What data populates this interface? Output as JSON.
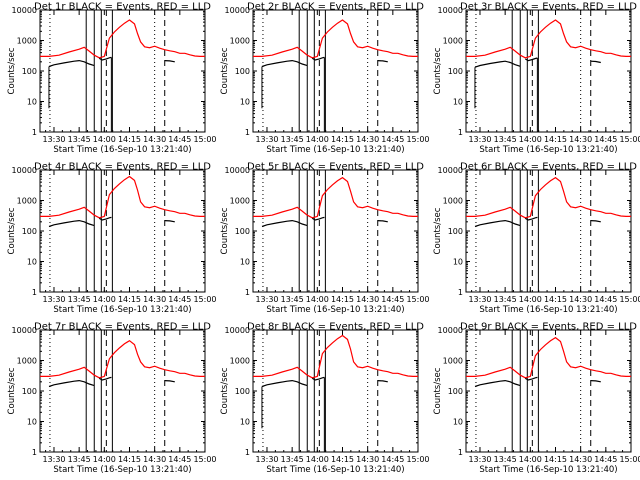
{
  "colors": {
    "events": "#000000",
    "lld": "#ff0000",
    "background": "#ffffff"
  },
  "chart_data": {
    "type": "line",
    "layout": "3x3 grid of panels",
    "ylabel": "Counts/sec",
    "xlabel": "Start Time (16-Sep-10 13:21:40)",
    "yscale": "log",
    "ylim": [
      1,
      10000
    ],
    "y_ticks": [
      1,
      10,
      100,
      1000,
      10000
    ],
    "xlim": [
      13.3611,
      15.0
    ],
    "x_ticks": [
      {
        "x": 13.5,
        "label": "13:30"
      },
      {
        "x": 13.75,
        "label": "13:45"
      },
      {
        "x": 14.0,
        "label": "14:00"
      },
      {
        "x": 14.25,
        "label": "14:15"
      },
      {
        "x": 14.5,
        "label": "14:30"
      },
      {
        "x": 14.75,
        "label": "14:45"
      },
      {
        "x": 15.0,
        "label": "15:00"
      }
    ],
    "series_names": [
      "Events",
      "LLD"
    ],
    "lld": {
      "x": [
        13.361,
        13.45,
        13.55,
        13.65,
        13.75,
        13.8,
        13.85,
        13.9,
        13.95,
        14.0,
        14.05,
        14.1,
        14.15,
        14.2,
        14.25,
        14.3,
        14.33,
        14.36,
        14.4,
        14.45,
        14.5,
        14.55,
        14.6,
        14.65,
        14.7,
        14.75,
        14.8,
        14.85,
        14.9,
        14.95,
        15.0
      ],
      "y": [
        300,
        300,
        330,
        420,
        520,
        600,
        450,
        330,
        270,
        300,
        1200,
        1900,
        2700,
        3700,
        4700,
        3500,
        1700,
        900,
        620,
        580,
        650,
        560,
        500,
        460,
        430,
        380,
        380,
        340,
        310,
        300,
        300
      ]
    },
    "events": {
      "segments": [
        {
          "x": [
            13.45,
            13.5,
            13.6,
            13.7,
            13.75,
            13.8,
            13.85,
            13.9
          ],
          "y": [
            140,
            160,
            185,
            210,
            220,
            200,
            170,
            150
          ]
        },
        {
          "x": [
            13.95,
            13.98,
            14.02,
            14.05,
            14.07
          ],
          "y": [
            260,
            230,
            250,
            270,
            280
          ]
        },
        {
          "x": [
            14.6,
            14.65,
            14.7
          ],
          "y": [
            220,
            215,
            200
          ]
        }
      ],
      "spikes": [
        {
          "x": 13.45,
          "from": 140,
          "to": 6
        },
        {
          "x": 14.07,
          "from": 280,
          "to": 1
        }
      ]
    },
    "markers": {
      "solid": [
        13.82,
        13.9,
        13.97,
        14.08
      ],
      "dotted": [
        13.46,
        14.5
      ],
      "dashed": [
        14.02,
        14.6
      ]
    },
    "panels": [
      {
        "title": "Det 1r  BLACK = Events, RED = LLD",
        "peak_scale": 1.0,
        "ev_scale": 1.0,
        "tick_set": "A",
        "has_drop_spike": true
      },
      {
        "title": "Det 2r  BLACK = Events, RED = LLD",
        "peak_scale": 1.0,
        "ev_scale": 1.0,
        "tick_set": "B",
        "has_drop_spike": true
      },
      {
        "title": "Det 3r  BLACK = Events, RED = LLD",
        "peak_scale": 1.0,
        "ev_scale": 0.95,
        "tick_set": "B",
        "has_drop_spike": true
      },
      {
        "title": "Det 4r  BLACK = Events, RED = LLD",
        "peak_scale": 1.3,
        "ev_scale": 1.0,
        "tick_set": "A",
        "has_drop_spike": false
      },
      {
        "title": "Det 5r  BLACK = Events, RED = LLD",
        "peak_scale": 1.2,
        "ev_scale": 1.0,
        "tick_set": "B",
        "has_drop_spike": false
      },
      {
        "title": "Det 6r  BLACK = Events, RED = LLD",
        "peak_scale": 1.2,
        "ev_scale": 1.0,
        "tick_set": "B",
        "has_drop_spike": false
      },
      {
        "title": "Det 7r  BLACK = Events, RED = LLD",
        "peak_scale": 0.95,
        "ev_scale": 1.0,
        "tick_set": "A",
        "has_drop_spike": false
      },
      {
        "title": "Det 8r  BLACK = Events, RED = LLD",
        "peak_scale": 1.4,
        "ev_scale": 1.0,
        "tick_set": "B",
        "has_drop_spike": true
      },
      {
        "title": "Det 9r  BLACK = Events, RED = LLD",
        "peak_scale": 1.2,
        "ev_scale": 1.0,
        "tick_set": "B",
        "has_drop_spike": false
      }
    ],
    "tick_label_sets": {
      "A": [
        "13:30",
        "13:45",
        "14:00",
        "14:15",
        "14:30",
        "14:45",
        "15:00"
      ],
      "B": [
        "13:30",
        "13:45",
        "14:00",
        "14:15",
        "14:30",
        "14:45",
        "15:00"
      ]
    },
    "grid": false,
    "legend": "none"
  }
}
